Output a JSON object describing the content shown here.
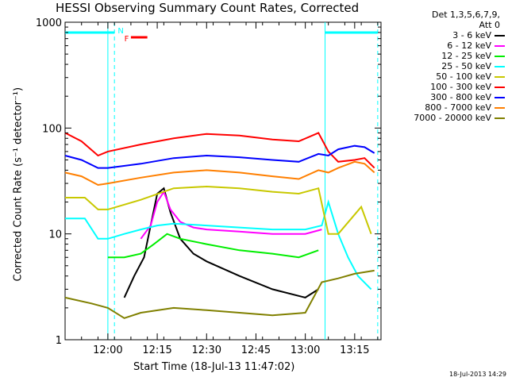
{
  "chart_data": {
    "type": "line",
    "title": "HESSI Observing Summary Count Rates, Corrected",
    "xlabel": "Start Time (18-Jul-13 11:47:02)",
    "ylabel": "Corrected Count Rate (s⁻¹ detector⁻¹)",
    "y_scale": "log",
    "ylim": [
      1,
      1000
    ],
    "xlim": [
      "11:47",
      "13:23"
    ],
    "x_tick_labels": [
      "12:00",
      "12:15",
      "12:30",
      "12:45",
      "13:00",
      "13:15"
    ],
    "y_tick_labels": [
      "1",
      "10",
      "100",
      "1000"
    ],
    "legend_header": [
      "Det 1,3,5,6,7,9,",
      "Att 0"
    ],
    "legend_position": "right",
    "series": [
      {
        "name": "3 - 6 keV",
        "color": "#000000",
        "x": [
          "12:05",
          "12:08",
          "12:11",
          "12:13",
          "12:15",
          "12:17",
          "12:19",
          "12:22",
          "12:26",
          "12:30",
          "12:40",
          "12:50",
          "13:00",
          "13:04"
        ],
        "y": [
          2.5,
          4,
          6,
          12,
          24,
          27,
          16,
          9,
          6.5,
          5.5,
          4,
          3,
          2.5,
          3
        ]
      },
      {
        "name": "6 - 12 keV",
        "color": "#ff00ff",
        "x": [
          "12:10",
          "12:13",
          "12:15",
          "12:17",
          "12:19",
          "12:22",
          "12:26",
          "12:30",
          "12:40",
          "12:50",
          "13:00",
          "13:05"
        ],
        "y": [
          9,
          12,
          20,
          25,
          17,
          13,
          11.5,
          11,
          10.5,
          10,
          10,
          11
        ]
      },
      {
        "name": "12 - 25 keV",
        "color": "#00ee00",
        "x": [
          "12:00",
          "12:05",
          "12:10",
          "12:14",
          "12:18",
          "12:22",
          "12:30",
          "12:40",
          "12:50",
          "12:58",
          "13:04"
        ],
        "y": [
          6,
          6,
          6.5,
          8,
          10,
          9,
          8,
          7,
          6.5,
          6,
          7
        ]
      },
      {
        "name": "25 - 50 keV",
        "color": "#00ffff",
        "x": [
          "11:47",
          "11:53",
          "11:57",
          "12:00",
          "12:05",
          "12:10",
          "12:15",
          "12:20",
          "12:30",
          "12:40",
          "12:50",
          "13:00",
          "13:05",
          "13:07",
          "13:10",
          "13:13",
          "13:16",
          "13:20"
        ],
        "y": [
          14,
          14,
          9,
          9,
          10,
          11,
          12,
          12.5,
          12,
          11.5,
          11,
          11,
          12,
          20,
          10,
          6,
          4,
          3
        ]
      },
      {
        "name": "50 - 100 keV",
        "color": "#c8c800",
        "x": [
          "11:47",
          "11:53",
          "11:57",
          "12:00",
          "12:10",
          "12:20",
          "12:30",
          "12:40",
          "12:50",
          "12:58",
          "13:04",
          "13:07",
          "13:10",
          "13:14",
          "13:17",
          "13:20"
        ],
        "y": [
          22,
          22,
          17,
          17,
          21,
          27,
          28,
          27,
          25,
          24,
          27,
          10,
          10,
          14,
          18,
          10
        ]
      },
      {
        "name": "100 - 300 keV",
        "color": "#ff0000",
        "x": [
          "11:47",
          "11:52",
          "11:57",
          "12:00",
          "12:10",
          "12:20",
          "12:30",
          "12:40",
          "12:50",
          "12:58",
          "13:04",
          "13:07",
          "13:10",
          "13:15",
          "13:18",
          "13:21"
        ],
        "y": [
          90,
          75,
          55,
          60,
          70,
          80,
          88,
          85,
          78,
          75,
          90,
          60,
          48,
          50,
          52,
          42
        ]
      },
      {
        "name": "300 - 800 keV",
        "color": "#0000ff",
        "x": [
          "11:47",
          "11:52",
          "11:57",
          "12:00",
          "12:10",
          "12:20",
          "12:30",
          "12:40",
          "12:50",
          "12:58",
          "13:04",
          "13:07",
          "13:10",
          "13:15",
          "13:18",
          "13:21"
        ],
        "y": [
          55,
          50,
          42,
          42,
          46,
          52,
          55,
          53,
          50,
          48,
          57,
          55,
          63,
          68,
          66,
          58
        ]
      },
      {
        "name": "800 - 7000 keV",
        "color": "#ff7f00",
        "x": [
          "11:47",
          "11:52",
          "11:57",
          "12:00",
          "12:10",
          "12:20",
          "12:30",
          "12:40",
          "12:50",
          "12:58",
          "13:04",
          "13:07",
          "13:10",
          "13:15",
          "13:18",
          "13:21"
        ],
        "y": [
          38,
          35,
          29,
          30,
          34,
          38,
          40,
          38,
          35,
          33,
          40,
          38,
          42,
          48,
          46,
          38
        ]
      },
      {
        "name": "7000 - 20000 keV",
        "color": "#808000",
        "x": [
          "11:47",
          "11:55",
          "12:00",
          "12:05",
          "12:10",
          "12:20",
          "12:30",
          "12:40",
          "12:50",
          "13:00",
          "13:05",
          "13:10",
          "13:15",
          "13:21"
        ],
        "y": [
          2.5,
          2.2,
          2.0,
          1.6,
          1.8,
          2.0,
          1.9,
          1.8,
          1.7,
          1.8,
          3.5,
          3.8,
          4.2,
          4.5
        ]
      }
    ],
    "intervals": {
      "color": "#00ffff",
      "bars": [
        {
          "x0": "11:47",
          "x1": "12:02"
        },
        {
          "x0": "13:06",
          "x1": "13:22"
        }
      ],
      "dashed_verticals": [
        "12:02",
        "13:22"
      ],
      "solid_verticals": [
        "12:00",
        "13:06"
      ],
      "labels": [
        {
          "text": "N",
          "x": "12:03",
          "color": "#00ffff"
        },
        {
          "text": "F",
          "x": "12:05",
          "color": "#ff0000"
        }
      ],
      "red_bar": {
        "x0": "12:07",
        "x1": "12:12",
        "color": "#ff0000"
      }
    }
  },
  "footer": {
    "date": "18-Jul-2013 14:29"
  }
}
